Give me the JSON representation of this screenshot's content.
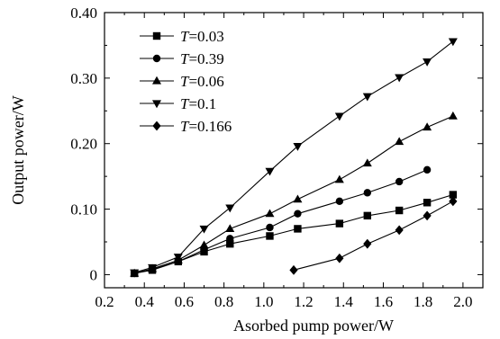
{
  "chart_data": {
    "type": "line",
    "title": "",
    "xlabel": "Asorbed pump power/W",
    "ylabel": "Output power/W",
    "xlim": [
      0.2,
      2.1
    ],
    "ylim": [
      -0.02,
      0.4
    ],
    "xticks": [
      0.2,
      0.4,
      0.6,
      0.8,
      1.0,
      1.2,
      1.4,
      1.6,
      1.8,
      2.0
    ],
    "xtick_labels": [
      "0.2",
      "0.4",
      "0.6",
      "0.8",
      "1.0",
      "1.2",
      "1.4",
      "1.6",
      "1.8",
      "2.0"
    ],
    "yticks": [
      0,
      0.1,
      0.2,
      0.3,
      0.4
    ],
    "ytick_labels": [
      "0",
      "0.10",
      "0.20",
      "0.30",
      "0.40"
    ],
    "grid": false,
    "legend_position": "top-left",
    "series": [
      {
        "name_prefix": "T",
        "name_suffix": "=0.03",
        "marker": "square",
        "x": [
          0.35,
          0.44,
          0.57,
          0.7,
          0.83,
          1.03,
          1.17,
          1.38,
          1.52,
          1.68,
          1.82,
          1.95
        ],
        "y": [
          0.002,
          0.007,
          0.02,
          0.035,
          0.047,
          0.059,
          0.07,
          0.078,
          0.09,
          0.098,
          0.11,
          0.122
        ]
      },
      {
        "name_prefix": "T",
        "name_suffix": "=0.39",
        "marker": "circle",
        "x": [
          0.35,
          0.44,
          0.57,
          0.7,
          0.83,
          1.03,
          1.17,
          1.38,
          1.52,
          1.68,
          1.82
        ],
        "y": [
          0.002,
          0.008,
          0.02,
          0.038,
          0.055,
          0.072,
          0.093,
          0.112,
          0.125,
          0.142,
          0.16
        ]
      },
      {
        "name_prefix": "T",
        "name_suffix": "=0.06",
        "marker": "triangle-up",
        "x": [
          0.35,
          0.44,
          0.57,
          0.7,
          0.83,
          1.03,
          1.17,
          1.38,
          1.52,
          1.68,
          1.82,
          1.95
        ],
        "y": [
          0.002,
          0.009,
          0.022,
          0.045,
          0.07,
          0.093,
          0.115,
          0.145,
          0.17,
          0.203,
          0.225,
          0.242
        ]
      },
      {
        "name_prefix": "T",
        "name_suffix": "=0.1",
        "marker": "triangle-down",
        "x": [
          0.35,
          0.44,
          0.57,
          0.7,
          0.83,
          1.03,
          1.17,
          1.38,
          1.52,
          1.68,
          1.82,
          1.95
        ],
        "y": [
          0.003,
          0.011,
          0.027,
          0.07,
          0.102,
          0.158,
          0.196,
          0.242,
          0.272,
          0.301,
          0.325,
          0.356
        ]
      },
      {
        "name_prefix": "T",
        "name_suffix": "=0.166",
        "marker": "diamond",
        "x": [
          1.15,
          1.38,
          1.52,
          1.68,
          1.82,
          1.95
        ],
        "y": [
          0.007,
          0.025,
          0.047,
          0.068,
          0.09,
          0.112
        ]
      }
    ]
  }
}
